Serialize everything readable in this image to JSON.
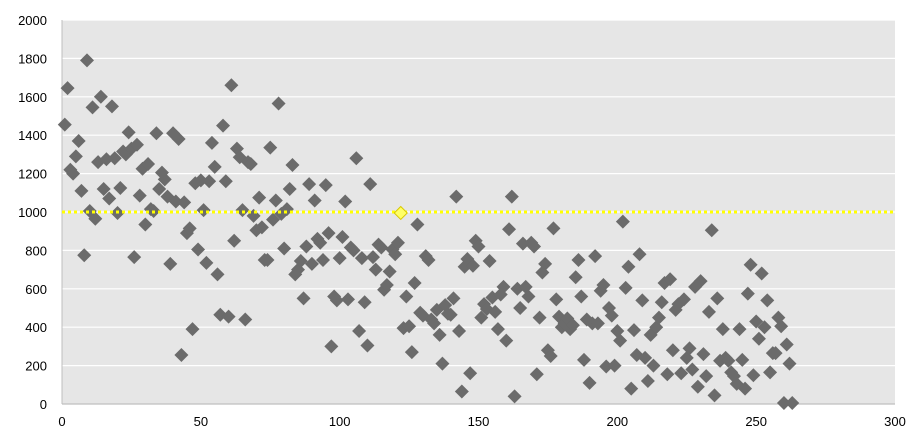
{
  "chart_data": {
    "type": "scatter",
    "title": "",
    "xlabel": "",
    "ylabel": "",
    "xlim": [
      0,
      300
    ],
    "ylim": [
      0,
      2000
    ],
    "x_ticks": [
      0,
      50,
      100,
      150,
      200,
      250,
      300
    ],
    "y_ticks": [
      0,
      200,
      400,
      600,
      800,
      1000,
      1200,
      1400,
      1600,
      1800,
      2000
    ],
    "grid": true,
    "legend": "none",
    "colors": {
      "plot_background": "#e6e6e6",
      "gridline": "#ffffff",
      "marker": "#6b6b6b",
      "reference_line": "#ffff00",
      "reference_marker": "#ffff66"
    },
    "reference_line": {
      "y": 1000,
      "style": "dotted"
    },
    "highlight_point": {
      "x": 122,
      "y": 995
    },
    "series": [
      {
        "marker": "diamond",
        "points": [
          [
            1,
            1455
          ],
          [
            2,
            1645
          ],
          [
            3,
            1220
          ],
          [
            4,
            1200
          ],
          [
            5,
            1290
          ],
          [
            6,
            1370
          ],
          [
            7,
            1110
          ],
          [
            8,
            775
          ],
          [
            9,
            1790
          ],
          [
            10,
            1005
          ],
          [
            11,
            1545
          ],
          [
            12,
            965
          ],
          [
            13,
            1260
          ],
          [
            14,
            1600
          ],
          [
            15,
            1120
          ],
          [
            16,
            1275
          ],
          [
            17,
            1070
          ],
          [
            18,
            1550
          ],
          [
            19,
            1280
          ],
          [
            20,
            995
          ],
          [
            21,
            1125
          ],
          [
            22,
            1315
          ],
          [
            23,
            1300
          ],
          [
            24,
            1415
          ],
          [
            25,
            1330
          ],
          [
            26,
            765
          ],
          [
            27,
            1350
          ],
          [
            28,
            1085
          ],
          [
            29,
            1225
          ],
          [
            30,
            935
          ],
          [
            31,
            1250
          ],
          [
            32,
            1015
          ],
          [
            33,
            1005
          ],
          [
            34,
            1410
          ],
          [
            35,
            1120
          ],
          [
            36,
            1205
          ],
          [
            37,
            1170
          ],
          [
            38,
            1080
          ],
          [
            39,
            730
          ],
          [
            40,
            1410
          ],
          [
            41,
            1055
          ],
          [
            42,
            1380
          ],
          [
            43,
            255
          ],
          [
            44,
            1050
          ],
          [
            45,
            890
          ],
          [
            46,
            915
          ],
          [
            47,
            390
          ],
          [
            48,
            1150
          ],
          [
            49,
            805
          ],
          [
            50,
            1165
          ],
          [
            51,
            1010
          ],
          [
            52,
            735
          ],
          [
            53,
            1160
          ],
          [
            54,
            1360
          ],
          [
            55,
            1235
          ],
          [
            56,
            675
          ],
          [
            57,
            465
          ],
          [
            58,
            1450
          ],
          [
            59,
            1160
          ],
          [
            60,
            455
          ],
          [
            61,
            1660
          ],
          [
            62,
            850
          ],
          [
            63,
            1330
          ],
          [
            64,
            1285
          ],
          [
            65,
            1010
          ],
          [
            66,
            440
          ],
          [
            67,
            1260
          ],
          [
            68,
            1250
          ],
          [
            69,
            980
          ],
          [
            70,
            905
          ],
          [
            71,
            1075
          ],
          [
            72,
            920
          ],
          [
            73,
            750
          ],
          [
            74,
            750
          ],
          [
            75,
            1335
          ],
          [
            76,
            960
          ],
          [
            77,
            1060
          ],
          [
            78,
            1565
          ],
          [
            79,
            990
          ],
          [
            80,
            810
          ],
          [
            81,
            1015
          ],
          [
            82,
            1120
          ],
          [
            83,
            1245
          ],
          [
            84,
            675
          ],
          [
            85,
            700
          ],
          [
            86,
            745
          ],
          [
            87,
            550
          ],
          [
            88,
            820
          ],
          [
            89,
            1145
          ],
          [
            90,
            730
          ],
          [
            91,
            1060
          ],
          [
            92,
            860
          ],
          [
            93,
            840
          ],
          [
            94,
            750
          ],
          [
            95,
            1140
          ],
          [
            96,
            890
          ],
          [
            97,
            300
          ],
          [
            98,
            560
          ],
          [
            99,
            540
          ],
          [
            100,
            760
          ],
          [
            101,
            870
          ],
          [
            102,
            1055
          ],
          [
            103,
            545
          ],
          [
            104,
            815
          ],
          [
            105,
            800
          ],
          [
            106,
            1280
          ],
          [
            107,
            380
          ],
          [
            108,
            760
          ],
          [
            109,
            530
          ],
          [
            110,
            305
          ],
          [
            111,
            1145
          ],
          [
            112,
            765
          ],
          [
            113,
            700
          ],
          [
            114,
            830
          ],
          [
            115,
            815
          ],
          [
            116,
            595
          ],
          [
            117,
            620
          ],
          [
            118,
            690
          ],
          [
            119,
            805
          ],
          [
            120,
            780
          ],
          [
            121,
            840
          ],
          [
            123,
            395
          ],
          [
            124,
            560
          ],
          [
            125,
            405
          ],
          [
            126,
            270
          ],
          [
            127,
            630
          ],
          [
            128,
            935
          ],
          [
            129,
            475
          ],
          [
            130,
            460
          ],
          [
            131,
            770
          ],
          [
            132,
            750
          ],
          [
            133,
            440
          ],
          [
            134,
            420
          ],
          [
            135,
            490
          ],
          [
            136,
            360
          ],
          [
            137,
            210
          ],
          [
            138,
            515
          ],
          [
            139,
            470
          ],
          [
            140,
            465
          ],
          [
            141,
            550
          ],
          [
            142,
            1080
          ],
          [
            143,
            380
          ],
          [
            144,
            65
          ],
          [
            145,
            715
          ],
          [
            146,
            755
          ],
          [
            147,
            160
          ],
          [
            148,
            720
          ],
          [
            149,
            850
          ],
          [
            150,
            820
          ],
          [
            151,
            450
          ],
          [
            152,
            520
          ],
          [
            153,
            495
          ],
          [
            154,
            745
          ],
          [
            155,
            555
          ],
          [
            156,
            480
          ],
          [
            157,
            390
          ],
          [
            158,
            570
          ],
          [
            159,
            610
          ],
          [
            160,
            330
          ],
          [
            161,
            910
          ],
          [
            162,
            1080
          ],
          [
            163,
            40
          ],
          [
            164,
            600
          ],
          [
            165,
            500
          ],
          [
            166,
            835
          ],
          [
            167,
            610
          ],
          [
            168,
            560
          ],
          [
            169,
            840
          ],
          [
            170,
            820
          ],
          [
            171,
            155
          ],
          [
            172,
            450
          ],
          [
            173,
            685
          ],
          [
            174,
            730
          ],
          [
            175,
            280
          ],
          [
            176,
            250
          ],
          [
            177,
            915
          ],
          [
            178,
            545
          ],
          [
            179,
            455
          ],
          [
            180,
            400
          ],
          [
            181,
            420
          ],
          [
            182,
            445
          ],
          [
            183,
            390
          ],
          [
            184,
            410
          ],
          [
            185,
            660
          ],
          [
            186,
            750
          ],
          [
            187,
            560
          ],
          [
            188,
            230
          ],
          [
            189,
            440
          ],
          [
            190,
            110
          ],
          [
            191,
            420
          ],
          [
            192,
            770
          ],
          [
            193,
            420
          ],
          [
            194,
            590
          ],
          [
            195,
            620
          ],
          [
            196,
            195
          ],
          [
            197,
            500
          ],
          [
            198,
            460
          ],
          [
            199,
            200
          ],
          [
            200,
            380
          ],
          [
            201,
            330
          ],
          [
            202,
            950
          ],
          [
            203,
            605
          ],
          [
            204,
            715
          ],
          [
            205,
            80
          ],
          [
            206,
            385
          ],
          [
            207,
            255
          ],
          [
            208,
            780
          ],
          [
            209,
            540
          ],
          [
            210,
            240
          ],
          [
            211,
            120
          ],
          [
            212,
            360
          ],
          [
            213,
            200
          ],
          [
            214,
            400
          ],
          [
            215,
            450
          ],
          [
            216,
            530
          ],
          [
            217,
            630
          ],
          [
            218,
            155
          ],
          [
            219,
            650
          ],
          [
            220,
            280
          ],
          [
            221,
            490
          ],
          [
            222,
            520
          ],
          [
            223,
            160
          ],
          [
            224,
            545
          ],
          [
            225,
            240
          ],
          [
            226,
            290
          ],
          [
            227,
            180
          ],
          [
            228,
            610
          ],
          [
            229,
            90
          ],
          [
            230,
            640
          ],
          [
            231,
            260
          ],
          [
            232,
            145
          ],
          [
            233,
            480
          ],
          [
            234,
            905
          ],
          [
            235,
            45
          ],
          [
            236,
            550
          ],
          [
            237,
            225
          ],
          [
            238,
            390
          ],
          [
            239,
            240
          ],
          [
            240,
            225
          ],
          [
            241,
            165
          ],
          [
            242,
            145
          ],
          [
            243,
            105
          ],
          [
            244,
            390
          ],
          [
            245,
            230
          ],
          [
            246,
            80
          ],
          [
            247,
            575
          ],
          [
            248,
            725
          ],
          [
            249,
            150
          ],
          [
            250,
            430
          ],
          [
            251,
            340
          ],
          [
            252,
            680
          ],
          [
            253,
            400
          ],
          [
            254,
            540
          ],
          [
            255,
            165
          ],
          [
            256,
            265
          ],
          [
            257,
            265
          ],
          [
            258,
            450
          ],
          [
            259,
            405
          ],
          [
            260,
            5
          ],
          [
            261,
            310
          ],
          [
            262,
            210
          ],
          [
            263,
            5
          ]
        ]
      }
    ]
  }
}
